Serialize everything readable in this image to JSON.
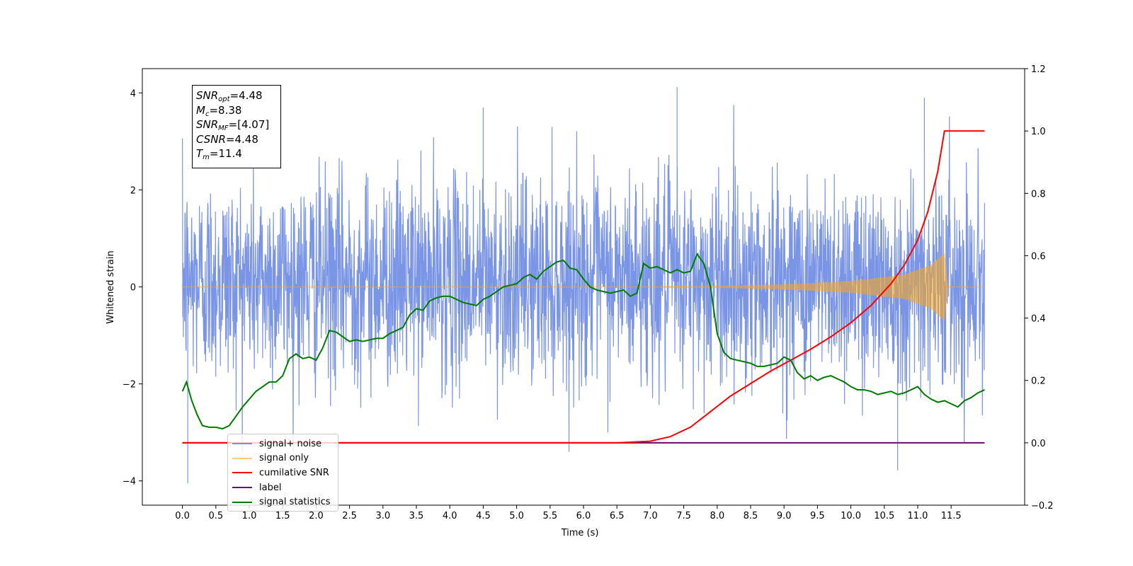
{
  "colors": {
    "signal_noise": "#5a7be0",
    "signal_only": "#f5a623",
    "cumulative_snr": "#ff0000",
    "label": "#6a0a6a",
    "signal_statistics": "#007a00"
  },
  "info": {
    "snr_opt_sym": "SNR",
    "snr_opt_sub": "opt",
    "snr_opt_val": "=4.48",
    "mc_sym": "M",
    "mc_sub": "c",
    "mc_val": "=8.38",
    "snr_mf_sym": "SNR",
    "snr_mf_sub": "MF",
    "snr_mf_val": "=[4.07]",
    "csnr_sym": "CSNR",
    "csnr_val": "=4.48",
    "tm_sym": "T",
    "tm_sub": "m",
    "tm_val": "=11.4"
  },
  "legend": [
    {
      "label": "signal+ noise",
      "color_key": "signal_noise"
    },
    {
      "label": "signal only",
      "color_key": "signal_only"
    },
    {
      "label": "cumilative SNR",
      "color_key": "cumulative_snr"
    },
    {
      "label": "label",
      "color_key": "label"
    },
    {
      "label": "signal statistics",
      "color_key": "signal_statistics"
    }
  ],
  "chart_data": {
    "type": "line",
    "xlabel": "Time (s)",
    "ylabel": "Whitened strain",
    "xlim": [
      -0.6,
      12.6
    ],
    "ylim": [
      -4.5,
      4.5
    ],
    "y2lim": [
      -0.2,
      1.2
    ],
    "xticks": [
      "0.0",
      "0.5",
      "1.0",
      "1.5",
      "2.0",
      "2.5",
      "3.0",
      "3.5",
      "4.0",
      "4.5",
      "5.0",
      "5.5",
      "6.0",
      "6.5",
      "7.0",
      "7.5",
      "8.0",
      "8.5",
      "9.0",
      "9.5",
      "10.0",
      "10.5",
      "11.0",
      "11.5"
    ],
    "yticks": [
      -4,
      -2,
      0,
      2,
      4
    ],
    "y2ticks": [
      "−0.2",
      "0.0",
      "0.2",
      "0.4",
      "0.6",
      "0.8",
      "1.0",
      "1.2"
    ],
    "grid": false,
    "legend_position": "lower-left",
    "series": [
      {
        "name": "signal+ noise",
        "axis": "left",
        "description_values": "dense gaussian-like noise spanning about -3.5 to 4.1",
        "x_range": [
          0.0,
          12.0
        ],
        "spikes": [
          {
            "x": 0.08,
            "y": -4.05
          },
          {
            "x": 7.4,
            "y": 4.12
          },
          {
            "x": 4.5,
            "y": 3.7
          },
          {
            "x": 10.7,
            "y": -3.78
          },
          {
            "x": 11.1,
            "y": 3.9
          }
        ]
      },
      {
        "name": "signal only",
        "axis": "left",
        "description_values": "chirp growing near merger",
        "envelope": [
          [
            0.0,
            0.0
          ],
          [
            7.0,
            0.0
          ],
          [
            8.0,
            0.02
          ],
          [
            9.0,
            0.05
          ],
          [
            10.0,
            0.12
          ],
          [
            10.8,
            0.25
          ],
          [
            11.2,
            0.45
          ],
          [
            11.4,
            0.7
          ],
          [
            11.45,
            0.0
          ],
          [
            12.0,
            0.0
          ]
        ]
      },
      {
        "name": "cumilative SNR",
        "axis": "right",
        "x": [
          0.0,
          6.5,
          7.0,
          7.3,
          7.6,
          7.9,
          8.2,
          8.5,
          8.8,
          9.1,
          9.4,
          9.7,
          10.0,
          10.3,
          10.6,
          10.8,
          11.0,
          11.15,
          11.3,
          11.4,
          12.0
        ],
        "y": [
          0.0,
          0.0,
          0.005,
          0.02,
          0.05,
          0.1,
          0.15,
          0.19,
          0.23,
          0.265,
          0.3,
          0.34,
          0.385,
          0.44,
          0.51,
          0.57,
          0.65,
          0.74,
          0.87,
          1.0,
          1.0
        ]
      },
      {
        "name": "label",
        "axis": "right",
        "x": [
          0.0,
          12.0
        ],
        "y": [
          0.0,
          0.0
        ]
      },
      {
        "name": "signal statistics",
        "axis": "right",
        "x": [
          0.0,
          0.06,
          0.14,
          0.22,
          0.3,
          0.4,
          0.5,
          0.6,
          0.7,
          0.8,
          0.9,
          1.0,
          1.1,
          1.2,
          1.3,
          1.4,
          1.5,
          1.6,
          1.7,
          1.8,
          1.9,
          2.0,
          2.1,
          2.2,
          2.3,
          2.4,
          2.5,
          2.6,
          2.7,
          2.8,
          2.9,
          3.0,
          3.1,
          3.2,
          3.3,
          3.4,
          3.5,
          3.6,
          3.7,
          3.8,
          3.9,
          4.0,
          4.1,
          4.2,
          4.3,
          4.4,
          4.5,
          4.6,
          4.7,
          4.8,
          4.9,
          5.0,
          5.1,
          5.2,
          5.3,
          5.4,
          5.5,
          5.6,
          5.7,
          5.8,
          5.9,
          6.0,
          6.1,
          6.2,
          6.3,
          6.4,
          6.5,
          6.6,
          6.7,
          6.8,
          6.9,
          7.0,
          7.1,
          7.2,
          7.3,
          7.4,
          7.5,
          7.6,
          7.7,
          7.8,
          7.9,
          8.0,
          8.1,
          8.2,
          8.3,
          8.4,
          8.5,
          8.6,
          8.7,
          8.8,
          8.9,
          9.0,
          9.1,
          9.2,
          9.3,
          9.4,
          9.5,
          9.6,
          9.7,
          9.8,
          9.9,
          10.0,
          10.1,
          10.2,
          10.3,
          10.4,
          10.5,
          10.6,
          10.7,
          10.8,
          10.9,
          11.0,
          11.1,
          11.2,
          11.3,
          11.4,
          11.5,
          11.6,
          11.7,
          11.8,
          11.9,
          12.0
        ],
        "y": [
          0.165,
          0.195,
          0.135,
          0.09,
          0.055,
          0.05,
          0.05,
          0.045,
          0.055,
          0.085,
          0.115,
          0.14,
          0.165,
          0.18,
          0.195,
          0.195,
          0.215,
          0.27,
          0.285,
          0.27,
          0.275,
          0.265,
          0.305,
          0.36,
          0.355,
          0.34,
          0.325,
          0.33,
          0.325,
          0.33,
          0.335,
          0.335,
          0.35,
          0.36,
          0.37,
          0.41,
          0.43,
          0.425,
          0.455,
          0.465,
          0.47,
          0.47,
          0.46,
          0.45,
          0.445,
          0.44,
          0.46,
          0.47,
          0.485,
          0.5,
          0.505,
          0.51,
          0.53,
          0.54,
          0.525,
          0.55,
          0.565,
          0.58,
          0.585,
          0.56,
          0.555,
          0.525,
          0.5,
          0.49,
          0.485,
          0.48,
          0.485,
          0.49,
          0.47,
          0.48,
          0.575,
          0.56,
          0.565,
          0.555,
          0.545,
          0.555,
          0.545,
          0.55,
          0.605,
          0.575,
          0.5,
          0.35,
          0.29,
          0.27,
          0.265,
          0.26,
          0.255,
          0.245,
          0.245,
          0.25,
          0.255,
          0.275,
          0.265,
          0.225,
          0.205,
          0.215,
          0.2,
          0.21,
          0.215,
          0.205,
          0.195,
          0.18,
          0.17,
          0.17,
          0.165,
          0.155,
          0.16,
          0.165,
          0.155,
          0.16,
          0.17,
          0.18,
          0.155,
          0.14,
          0.13,
          0.135,
          0.125,
          0.115,
          0.135,
          0.145,
          0.16,
          0.17
        ]
      }
    ]
  }
}
